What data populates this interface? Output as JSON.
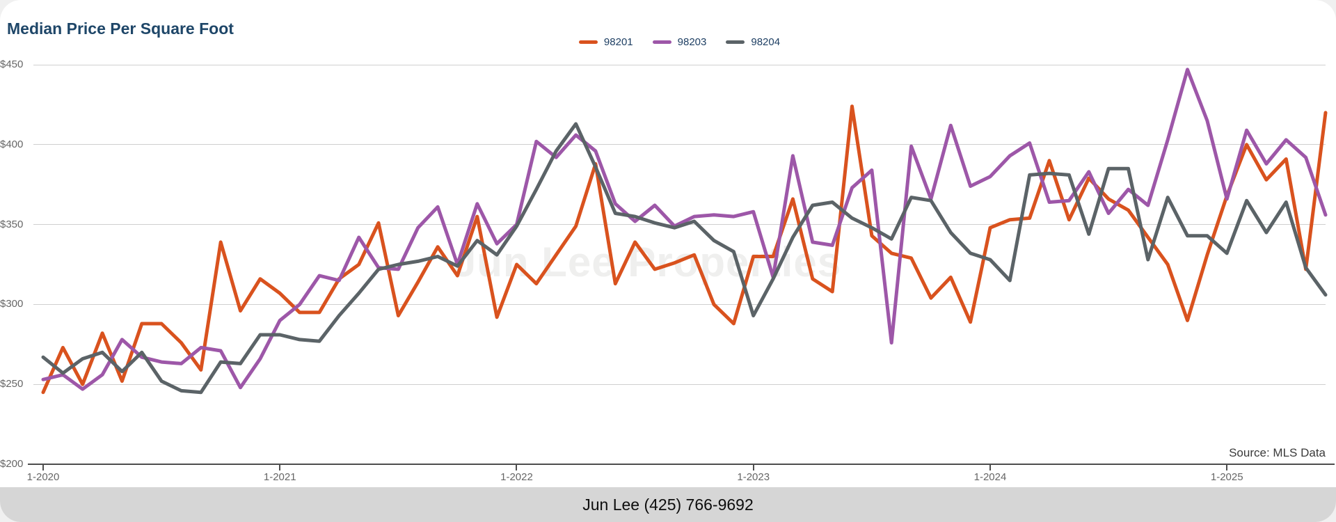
{
  "title": "Median Price Per Square Foot",
  "source_note": "Source: MLS Data",
  "watermark": "Jun Lee Properties",
  "footer": {
    "contact": "Jun Lee (425) 766-9692"
  },
  "colors": {
    "series_98201": "#d9521e",
    "series_98203": "#9d57a8",
    "series_98204": "#5b6367",
    "title_text": "#1e4668",
    "grid": "#cfcfcf",
    "axis": "#4d4d4d",
    "footer_bg": "#d6d6d6",
    "watermark_text": "#efefee"
  },
  "chart_data": {
    "type": "line",
    "title": "Median Price Per Square Foot",
    "xlabel": "",
    "ylabel": "",
    "x_start": "1-2020",
    "x_end": "6-2025",
    "x_interval": "monthly",
    "x_tick_labels": [
      "1-2020",
      "1-2021",
      "1-2022",
      "1-2023",
      "1-2024",
      "1-2025"
    ],
    "x_tick_indices": [
      0,
      12,
      24,
      36,
      48,
      60
    ],
    "y_ticks": [
      {
        "label": "$450",
        "value": 450
      },
      {
        "label": "$400",
        "value": 400
      },
      {
        "label": "$350",
        "value": 350
      },
      {
        "label": "$300",
        "value": 300
      },
      {
        "label": "$250",
        "value": 250
      },
      {
        "label": "$200",
        "value": 200
      }
    ],
    "ylim": [
      200,
      450
    ],
    "grid": true,
    "legend_position": "top-center",
    "series": [
      {
        "name": "98201",
        "color": "#d9521e",
        "values": [
          245,
          273,
          250,
          282,
          252,
          288,
          288,
          276,
          259,
          339,
          296,
          316,
          307,
          295,
          295,
          316,
          325,
          351,
          293,
          314,
          336,
          318,
          355,
          292,
          325,
          313,
          331,
          349,
          388,
          313,
          339,
          322,
          326,
          331,
          300,
          288,
          330,
          330,
          366,
          316,
          308,
          424,
          343,
          332,
          329,
          304,
          317,
          289,
          348,
          353,
          354,
          390,
          353,
          379,
          366,
          359,
          342,
          325,
          290,
          331,
          368,
          400,
          378,
          391,
          322,
          420
        ]
      },
      {
        "name": "98203",
        "color": "#9d57a8",
        "values": [
          253,
          256,
          247,
          256,
          278,
          267,
          264,
          263,
          273,
          271,
          248,
          266,
          290,
          300,
          318,
          315,
          342,
          323,
          322,
          348,
          361,
          325,
          363,
          338,
          350,
          402,
          392,
          406,
          396,
          363,
          352,
          362,
          349,
          355,
          356,
          355,
          358,
          317,
          393,
          339,
          337,
          373,
          384,
          276,
          399,
          366,
          412,
          374,
          380,
          393,
          401,
          364,
          365,
          383,
          357,
          372,
          362,
          403,
          447,
          415,
          366,
          409,
          388,
          403,
          392,
          356
        ]
      },
      {
        "name": "98204",
        "color": "#5b6367",
        "values": [
          267,
          257,
          266,
          270,
          258,
          270,
          252,
          246,
          245,
          264,
          263,
          281,
          281,
          278,
          277,
          293,
          307,
          322,
          325,
          327,
          330,
          324,
          340,
          331,
          349,
          372,
          396,
          413,
          386,
          357,
          355,
          351,
          348,
          352,
          340,
          333,
          293,
          316,
          342,
          362,
          364,
          354,
          348,
          341,
          367,
          365,
          345,
          332,
          328,
          315,
          381,
          382,
          381,
          344,
          385,
          385,
          328,
          367,
          343,
          343,
          332,
          365,
          345,
          364,
          323,
          306
        ]
      }
    ]
  }
}
